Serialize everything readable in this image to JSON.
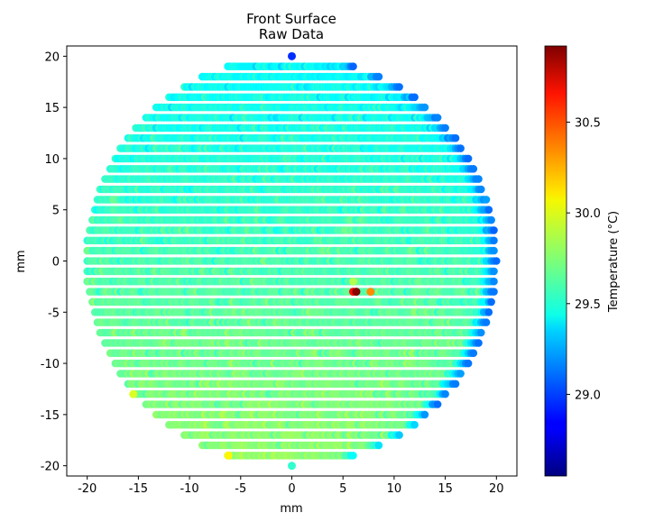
{
  "chart_data": {
    "type": "scatter",
    "title": "Front Surface",
    "subtitle": "Raw Data",
    "xlabel": "mm",
    "ylabel": "mm",
    "xlim": [
      -22,
      22
    ],
    "ylim": [
      -21,
      21
    ],
    "xticks": [
      -20,
      -15,
      -10,
      -5,
      0,
      5,
      10,
      15,
      20
    ],
    "yticks": [
      -20,
      -15,
      -10,
      -5,
      0,
      5,
      10,
      15,
      20
    ],
    "grid": false,
    "colormap": "jet",
    "colorbar": {
      "label": "Temperature (°C)",
      "range": [
        28.55,
        30.92
      ],
      "ticks": [
        29.0,
        29.5,
        30.0,
        30.5
      ],
      "tick_labels": [
        "29.0",
        "29.5",
        "30.0",
        "30.5"
      ]
    },
    "sampling": {
      "radius_mm": 20,
      "row_step_mm": 1,
      "x_step_mm": 0.25,
      "mean_temperature_top_row": 29.45,
      "mean_temperature_bottom_row": 29.78,
      "right_edge_temperature": 29.1,
      "noise_amplitude": 0.12
    },
    "special_points": [
      {
        "x": 0,
        "y": 20,
        "t": 28.95
      },
      {
        "x": 0,
        "y": -20,
        "t": 29.55
      },
      {
        "x": 6.0,
        "y": -3,
        "t": 30.6
      },
      {
        "x": 6.3,
        "y": -3,
        "t": 30.9
      },
      {
        "x": 7.7,
        "y": -3,
        "t": 30.3
      },
      {
        "x": -6.2,
        "y": -19,
        "t": 30.05
      },
      {
        "x": -15.5,
        "y": -13,
        "t": 29.95
      },
      {
        "x": 6.0,
        "y": -2,
        "t": 29.85
      }
    ]
  }
}
